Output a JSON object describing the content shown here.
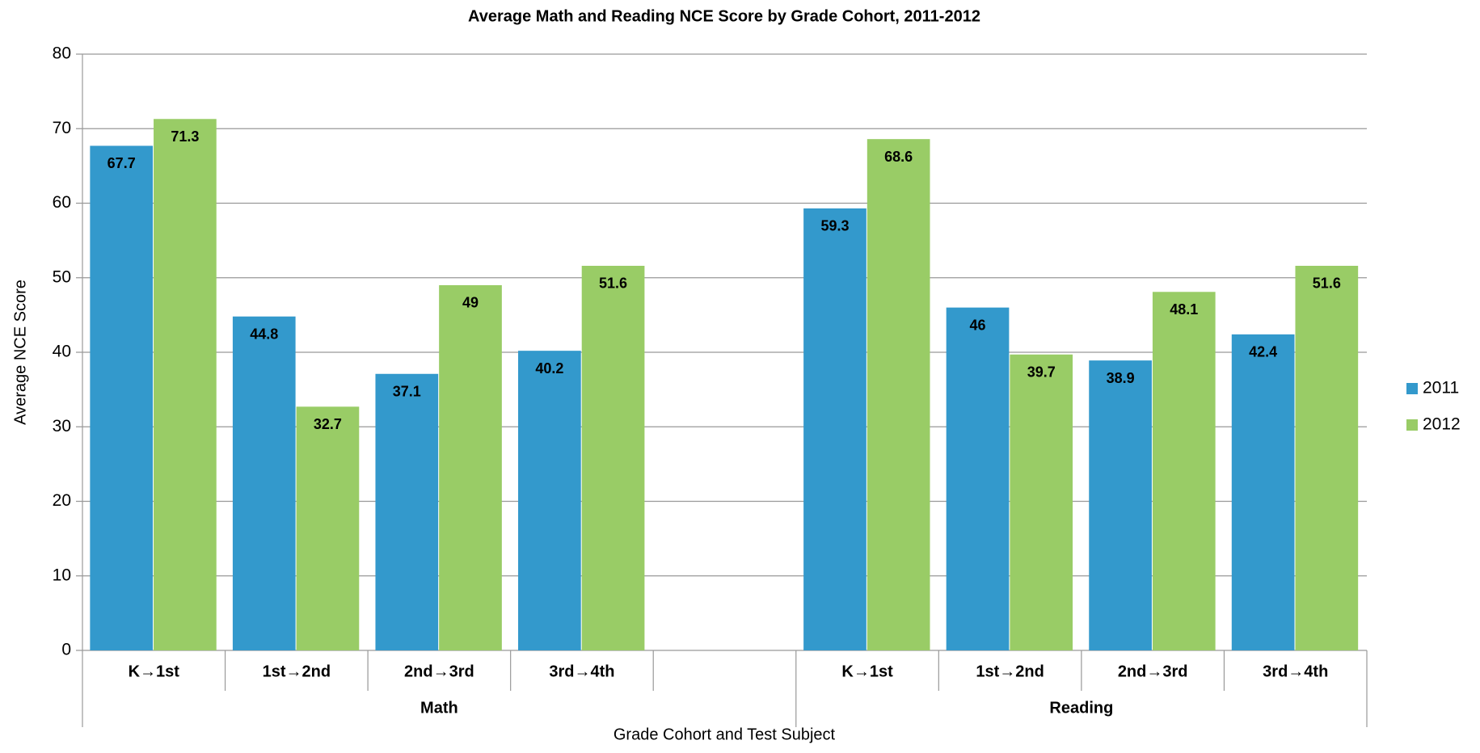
{
  "chart_data": {
    "type": "bar",
    "title": "Average Math and Reading NCE Score by Grade Cohort, 2011-2012",
    "x_label": "Grade Cohort and Test Subject",
    "y_label": "Average NCE Score",
    "categories": [
      "K→1st",
      "1st→2nd",
      "2nd→3rd",
      "3rd→4th",
      null,
      "K→1st",
      "1st→2nd",
      "2nd→3rd",
      "3rd→4th"
    ],
    "category_groups": [
      "Math",
      "Math",
      "Math",
      "Math",
      "Math",
      "Reading",
      "Reading",
      "Reading",
      "Reading"
    ],
    "series": [
      {
        "name": "2011",
        "color": "#3399cc",
        "values": [
          67.7,
          44.8,
          37.1,
          40.2,
          null,
          59.3,
          46,
          38.9,
          42.4
        ]
      },
      {
        "name": "2012",
        "color": "#99cc66",
        "values": [
          71.3,
          32.7,
          49,
          51.6,
          null,
          68.6,
          39.7,
          48.1,
          51.6
        ]
      }
    ],
    "ylim": [
      0,
      80
    ],
    "yticks": [
      0,
      10,
      20,
      30,
      40,
      50,
      60,
      70,
      80
    ],
    "grid": true,
    "legend": "right"
  }
}
